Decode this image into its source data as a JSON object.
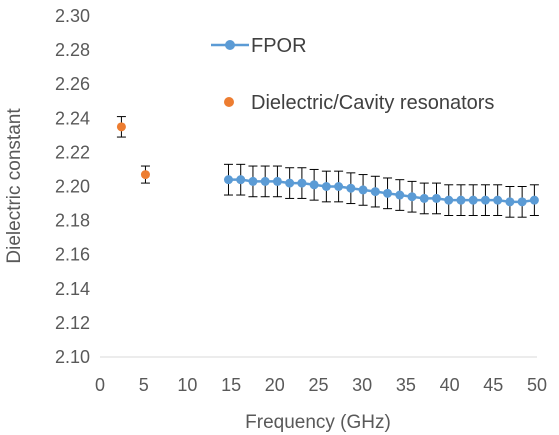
{
  "chart_data": {
    "type": "scatter",
    "xlabel": "Frequency (GHz)",
    "ylabel": "Dielectric constant",
    "xlim": [
      0,
      50
    ],
    "ylim": [
      2.1,
      2.3
    ],
    "x_ticks": [
      0,
      5,
      10,
      15,
      20,
      25,
      30,
      35,
      40,
      45,
      50
    ],
    "y_ticks": [
      "2.10",
      "2.12",
      "2.14",
      "2.16",
      "2.18",
      "2.20",
      "2.22",
      "2.24",
      "2.26",
      "2.28",
      "2.30"
    ],
    "grid": false,
    "legend_position": "top",
    "series": [
      {
        "name": "FPOR",
        "style": "line+markers",
        "color": "#5b9bd5",
        "x": [
          14.7,
          16.1,
          17.5,
          18.9,
          20.3,
          21.7,
          23.1,
          24.5,
          25.9,
          27.3,
          28.7,
          30.1,
          31.5,
          32.9,
          34.3,
          35.7,
          37.1,
          38.5,
          39.9,
          41.3,
          42.7,
          44.1,
          45.5,
          46.9,
          48.3,
          49.7
        ],
        "y": [
          2.204,
          2.204,
          2.203,
          2.203,
          2.203,
          2.202,
          2.202,
          2.201,
          2.2,
          2.2,
          2.199,
          2.198,
          2.197,
          2.196,
          2.195,
          2.194,
          2.193,
          2.193,
          2.192,
          2.192,
          2.192,
          2.192,
          2.192,
          2.191,
          2.191,
          2.192
        ],
        "error": [
          0.009,
          0.009,
          0.009,
          0.009,
          0.009,
          0.009,
          0.009,
          0.009,
          0.009,
          0.009,
          0.009,
          0.009,
          0.009,
          0.009,
          0.009,
          0.009,
          0.009,
          0.009,
          0.009,
          0.009,
          0.009,
          0.009,
          0.009,
          0.009,
          0.009,
          0.009
        ]
      },
      {
        "name": "Dielectric/Cavity resonators",
        "style": "markers",
        "color": "#ed7d31",
        "x": [
          2.45,
          5.2
        ],
        "y": [
          2.235,
          2.207
        ],
        "error": [
          0.006,
          0.005
        ]
      }
    ]
  }
}
